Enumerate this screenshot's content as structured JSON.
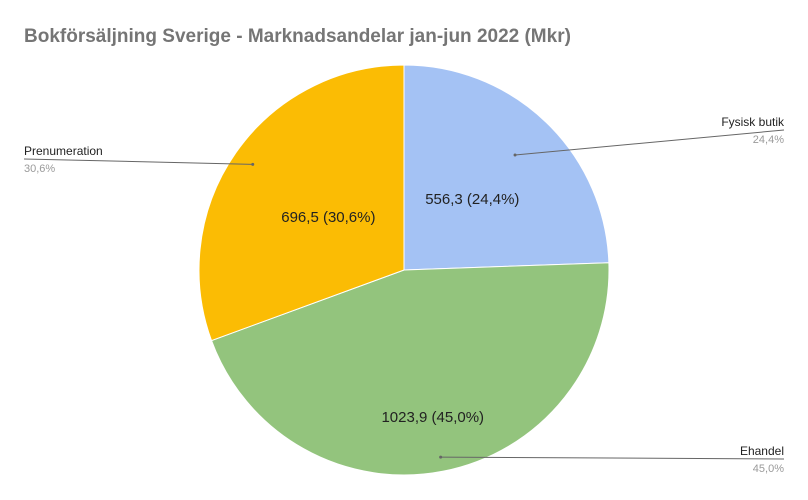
{
  "chart_data": {
    "type": "pie",
    "title": "Bokförsäljning Sverige - Marknadsandelar jan-jun 2022 (Mkr)",
    "slices": [
      {
        "name": "Fysisk butik",
        "value": 556.3,
        "label": "556,3 (24,4%)",
        "percent_label": "24,4%",
        "color": "#a4c2f4"
      },
      {
        "name": "Ehandel",
        "value": 1023.9,
        "label": "1023,9 (45,0%)",
        "percent_label": "45,0%",
        "color": "#93c47d"
      },
      {
        "name": "Prenumeration",
        "value": 696.5,
        "label": "696,5 (30,6%)",
        "percent_label": "30,6%",
        "color": "#fbbc04"
      }
    ],
    "legend": "callouts"
  }
}
